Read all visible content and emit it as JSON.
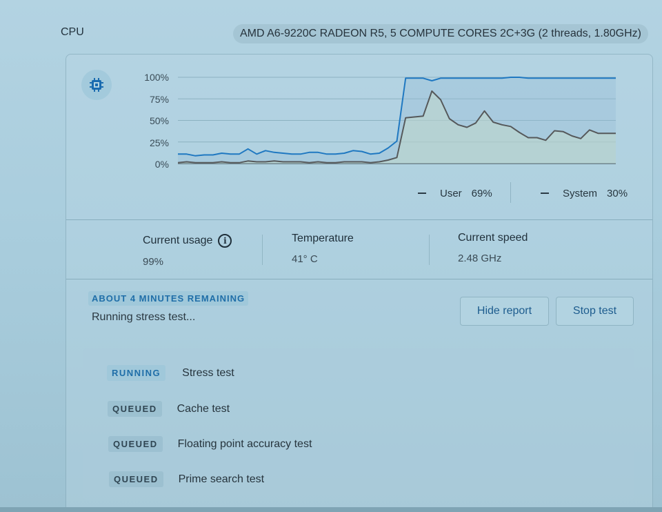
{
  "header": {
    "title": "CPU",
    "cpu_model": "AMD A6-9220C RADEON R5, 5 COMPUTE CORES 2C+3G (2 threads, 1.80GHz)"
  },
  "icon": {
    "name": "cpu-chip-icon",
    "color": "#1a6bb0"
  },
  "chart_data": {
    "type": "line",
    "title": "CPU usage",
    "xlabel": "",
    "ylabel": "",
    "ylim": [
      0,
      100
    ],
    "yticks": [
      "100%",
      "75%",
      "50%",
      "25%",
      "0%"
    ],
    "grid": true,
    "legend_position": "bottom-right",
    "series": [
      {
        "name": "User",
        "color": "#1f78c1",
        "values": [
          11,
          11,
          9,
          10,
          10,
          12,
          11,
          11,
          17,
          11,
          15,
          13,
          12,
          11,
          11,
          13,
          13,
          11,
          11,
          12,
          15,
          14,
          11,
          12,
          18,
          26,
          99,
          99,
          99,
          96,
          99,
          99,
          99,
          99,
          99,
          99,
          99,
          99,
          100,
          100,
          99,
          99,
          99,
          99,
          99,
          99,
          99,
          99,
          99,
          99,
          99
        ]
      },
      {
        "name": "System",
        "color": "#55585a",
        "values": [
          1,
          2,
          1,
          1,
          1,
          2,
          1,
          1,
          3,
          2,
          2,
          3,
          2,
          2,
          2,
          1,
          2,
          1,
          1,
          2,
          2,
          2,
          1,
          2,
          4,
          7,
          53,
          54,
          55,
          84,
          74,
          52,
          45,
          42,
          47,
          61,
          48,
          45,
          43,
          36,
          30,
          30,
          27,
          38,
          37,
          32,
          29,
          39,
          35,
          35,
          35
        ]
      }
    ]
  },
  "legend": {
    "user_label": "User",
    "user_value": "69%",
    "system_label": "System",
    "system_value": "30%"
  },
  "stats": {
    "usage_label": "Current usage",
    "usage_value": "99%",
    "temp_label": "Temperature",
    "temp_value": "41° C",
    "speed_label": "Current speed",
    "speed_value": "2.48 GHz"
  },
  "routine": {
    "remaining": "ABOUT 4 MINUTES REMAINING",
    "status_text": "Running stress test...",
    "hide_report_label": "Hide report",
    "stop_test_label": "Stop test"
  },
  "tests": [
    {
      "status": "RUNNING",
      "name": "Stress test"
    },
    {
      "status": "QUEUED",
      "name": "Cache test"
    },
    {
      "status": "QUEUED",
      "name": "Floating point accuracy test"
    },
    {
      "status": "QUEUED",
      "name": "Prime search test"
    }
  ]
}
